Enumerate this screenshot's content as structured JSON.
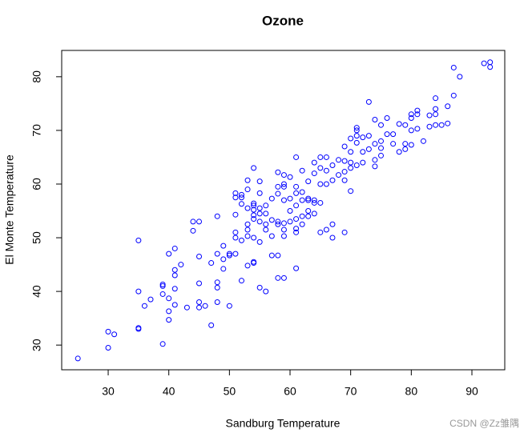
{
  "chart_data": {
    "type": "scatter",
    "title": "Ozone",
    "xlabel": "Sandburg Temperature",
    "ylabel": "El Monte Temperature",
    "xlim": [
      22.33,
      95.42
    ],
    "ylim": [
      25.4,
      84.9
    ],
    "xticks": [
      30,
      40,
      50,
      60,
      70,
      80,
      90
    ],
    "yticks": [
      30,
      40,
      50,
      60,
      70,
      80
    ],
    "color": "#0000ff",
    "x": [
      25,
      30,
      30,
      31,
      35,
      35,
      35,
      35,
      36,
      37,
      39,
      39,
      39,
      39,
      40,
      40,
      40,
      40,
      41,
      41,
      41,
      41,
      41,
      42,
      43,
      44,
      44,
      45,
      45,
      45,
      45,
      45,
      46,
      47,
      47,
      48,
      48,
      48,
      48,
      48,
      49,
      49,
      49,
      50,
      50,
      50,
      51,
      51,
      51,
      51,
      51,
      51,
      52,
      52,
      52,
      52,
      52,
      53,
      53,
      53,
      53,
      53,
      53,
      53,
      54,
      54,
      54,
      54,
      54,
      54,
      54,
      54,
      54,
      55,
      55,
      55,
      55,
      55,
      55,
      55,
      56,
      56,
      56,
      56,
      56,
      57,
      57,
      57,
      57,
      58,
      58,
      58,
      58,
      58,
      58,
      58,
      59,
      59,
      59,
      59,
      59,
      59,
      59,
      59,
      60,
      60,
      60,
      60,
      61,
      61,
      61,
      61,
      61,
      61,
      61,
      61,
      62,
      62,
      62,
      62,
      62,
      63,
      63,
      63,
      63,
      63,
      64,
      64,
      64,
      64,
      64,
      65,
      65,
      65,
      65,
      65,
      66,
      66,
      66,
      66,
      67,
      67,
      67,
      67,
      68,
      68,
      69,
      69,
      69,
      69,
      69,
      70,
      70,
      70,
      70,
      70,
      71,
      71,
      71,
      71,
      71,
      72,
      72,
      72,
      73,
      73,
      73,
      74,
      74,
      74,
      74,
      75,
      75,
      75,
      75,
      76,
      76,
      77,
      77,
      78,
      78,
      79,
      79,
      79,
      80,
      80,
      80,
      80,
      81,
      81,
      81,
      82,
      83,
      83,
      84,
      84,
      84,
      84,
      85,
      86,
      86,
      87,
      87,
      88,
      92,
      93,
      93
    ],
    "y": [
      27.5,
      32.5,
      29.5,
      32,
      33,
      33.2,
      40,
      49.5,
      37.3,
      38.5,
      41,
      41.3,
      39.5,
      30.2,
      34.7,
      36.3,
      38.7,
      47,
      37.5,
      40.5,
      43,
      44,
      48,
      45,
      37,
      51.3,
      53,
      53,
      46.5,
      41.5,
      37,
      38,
      37.3,
      33.7,
      45.3,
      54,
      47,
      41.7,
      40.7,
      38,
      44.2,
      46,
      48.5,
      37.3,
      46.7,
      47,
      47,
      50,
      51,
      54.3,
      57.5,
      58.3,
      42,
      49.5,
      56.3,
      57.5,
      58,
      44.8,
      50.3,
      51.5,
      52.5,
      55.5,
      59,
      60.7,
      45.3,
      45.5,
      50,
      53.5,
      54.2,
      55.2,
      56,
      56.4,
      63,
      40.7,
      49.2,
      53,
      54.5,
      55.5,
      58.3,
      60.5,
      40,
      51.5,
      52.5,
      54.5,
      56,
      46.7,
      50.3,
      53.3,
      57.3,
      42.5,
      46.7,
      52.5,
      53,
      58.2,
      59.5,
      62.2,
      42.5,
      50.3,
      51.5,
      52.7,
      57,
      59.5,
      60,
      61.7,
      53,
      55,
      57.3,
      61.3,
      44.3,
      51,
      51.7,
      53.5,
      56,
      58.3,
      59.5,
      65,
      52.5,
      54,
      57,
      58.5,
      62.5,
      55,
      57.3,
      57,
      60.5,
      54,
      54.5,
      56.5,
      57,
      62,
      64,
      51,
      56.5,
      60,
      63,
      65,
      51.5,
      60,
      62.5,
      65,
      50,
      52.5,
      60.7,
      63.5,
      61.7,
      64.5,
      51,
      60.7,
      62.3,
      64.3,
      67,
      58.7,
      63,
      64,
      66,
      68.5,
      63.5,
      67.7,
      69,
      70,
      70.5,
      64,
      66,
      68.7,
      66.5,
      69,
      75.3,
      63.3,
      64.5,
      67.5,
      72,
      65.3,
      66.7,
      68,
      71,
      69.3,
      72.3,
      67.5,
      69.3,
      66,
      71.2,
      66.5,
      67.5,
      71,
      67.3,
      70,
      72.3,
      73,
      70.3,
      73,
      73.7,
      68,
      70.7,
      72.8,
      71,
      73,
      74,
      76,
      71,
      71.3,
      74.5,
      76.5,
      81.7,
      80,
      82.5,
      81.8,
      82.7
    ]
  },
  "watermark": "CSDN @Zz雏隅"
}
